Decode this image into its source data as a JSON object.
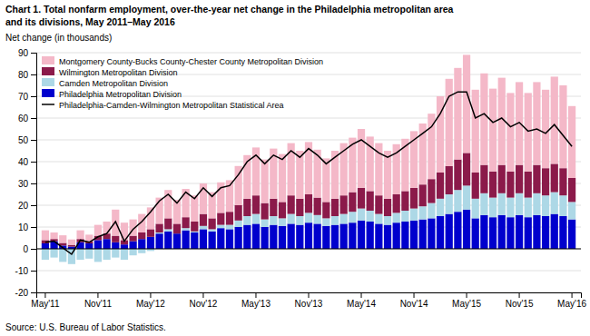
{
  "chart_data": {
    "type": "bar",
    "stacked": true,
    "title": "Chart 1. Total nonfarm employment, over-the-year net change in the Philadelphia metropolitan area",
    "subtitle": "and its divisions, May 2011–May 2016",
    "ylabel": "Net change (in thousands)",
    "source": "Source: U.S. Bureau of Labor Statistics.",
    "ylim": [
      -20,
      90
    ],
    "yticks": [
      -20,
      -10,
      0,
      10,
      20,
      30,
      40,
      50,
      60,
      70,
      80,
      90
    ],
    "grid": true,
    "legend": "upper left",
    "categories": [
      "May'11",
      null,
      null,
      null,
      null,
      null,
      "Nov'11",
      null,
      null,
      null,
      null,
      null,
      "May'12",
      null,
      null,
      null,
      null,
      null,
      "Nov'12",
      null,
      null,
      null,
      null,
      null,
      "May'13",
      null,
      null,
      null,
      null,
      null,
      "Nov'13",
      null,
      null,
      null,
      null,
      null,
      "May'14",
      null,
      null,
      null,
      null,
      null,
      "Nov'14",
      null,
      null,
      null,
      null,
      null,
      "May'15",
      null,
      null,
      null,
      null,
      null,
      "Nov'15",
      null,
      null,
      null,
      null,
      null,
      "May'16"
    ],
    "series": [
      {
        "name": "Montgomery County-Bucks County-Chester County Metropolitan Division",
        "color": "#f4b8c8",
        "type": "bar",
        "values": [
          4.5,
          3.0,
          3.5,
          2.5,
          4.0,
          3.0,
          5.0,
          5.5,
          12.0,
          8.0,
          7.5,
          8.5,
          10.0,
          12.0,
          13.0,
          11.0,
          13.0,
          12.0,
          14.0,
          12.0,
          14.0,
          14.5,
          18.0,
          20.0,
          22.0,
          20.0,
          23.0,
          22.0,
          24.0,
          22.0,
          24.0,
          22.0,
          20.0,
          22.0,
          24.0,
          25.0,
          27.0,
          25.0,
          24.0,
          22.0,
          23.0,
          24.0,
          26.0,
          28.0,
          30.0,
          35.0,
          40.0,
          42.0,
          45.0,
          38.0,
          42.0,
          38.0,
          40.0,
          36.0,
          38.0,
          36.0,
          38.0,
          36.0,
          40.0,
          38.0,
          33.0
        ]
      },
      {
        "name": "Wilmington Metropolitan Division",
        "color": "#8b1a4a",
        "type": "bar",
        "values": [
          1.5,
          1.0,
          1.2,
          0.8,
          1.5,
          1.0,
          2.0,
          2.5,
          3.0,
          2.0,
          2.5,
          3.0,
          3.5,
          4.0,
          5.0,
          4.5,
          5.0,
          4.5,
          5.5,
          5.0,
          5.5,
          6.0,
          7.0,
          8.0,
          8.5,
          7.5,
          8.0,
          7.5,
          8.5,
          8.0,
          8.5,
          8.0,
          7.5,
          8.0,
          8.5,
          9.0,
          9.5,
          9.0,
          8.5,
          8.0,
          8.5,
          9.0,
          9.5,
          10.0,
          11.0,
          12.0,
          13.0,
          14.0,
          15.0,
          12.0,
          13.0,
          12.0,
          13.0,
          12.0,
          13.0,
          12.0,
          13.0,
          12.5,
          13.0,
          12.5,
          11.0
        ]
      },
      {
        "name": "Camden Metropolitan Division",
        "color": "#add8e6",
        "type": "bar",
        "values": [
          -5.0,
          -4.0,
          -6.0,
          -7.0,
          -5.0,
          -4.5,
          -6.0,
          -5.0,
          -4.0,
          -5.0,
          -3.0,
          -2.0,
          -1.0,
          0.5,
          1.0,
          0.0,
          1.0,
          0.5,
          1.5,
          1.0,
          1.5,
          2.0,
          3.0,
          4.0,
          4.5,
          3.5,
          4.0,
          3.5,
          4.5,
          4.0,
          4.5,
          4.0,
          3.5,
          4.0,
          4.5,
          5.0,
          5.5,
          5.0,
          4.5,
          4.0,
          4.5,
          5.0,
          5.5,
          6.0,
          7.0,
          8.0,
          9.0,
          10.0,
          11.0,
          9.0,
          10.0,
          9.0,
          10.0,
          9.0,
          10.0,
          9.0,
          10.0,
          9.5,
          10.0,
          9.5,
          8.0
        ]
      },
      {
        "name": "Philadelphia Metropolitan Division",
        "color": "#0000cd",
        "type": "bar",
        "values": [
          2.5,
          3.5,
          1.5,
          1.0,
          3.0,
          2.5,
          4.0,
          4.5,
          3.0,
          2.0,
          3.5,
          4.5,
          5.5,
          7.0,
          8.0,
          7.0,
          8.5,
          7.5,
          9.0,
          8.0,
          9.5,
          9.0,
          10.0,
          11.0,
          11.5,
          10.0,
          11.0,
          10.5,
          11.5,
          11.0,
          12.0,
          11.5,
          10.5,
          11.0,
          11.5,
          12.0,
          13.0,
          12.5,
          11.5,
          11.0,
          12.0,
          12.5,
          13.0,
          13.5,
          14.0,
          15.0,
          16.0,
          17.0,
          18.0,
          14.0,
          15.5,
          14.5,
          15.5,
          14.5,
          15.5,
          14.5,
          15.5,
          15.0,
          16.0,
          15.0,
          13.5
        ]
      },
      {
        "name": "Philadelphia-Camden-Wilmington Metropolitan Statistical Area",
        "color": "#000000",
        "type": "line",
        "values": [
          3.0,
          3.5,
          0.5,
          -2.5,
          4.0,
          3.0,
          5.5,
          7.0,
          12.5,
          3.5,
          9.0,
          12.5,
          17.0,
          22.0,
          25.0,
          21.0,
          26.0,
          23.0,
          28.0,
          24.0,
          28.0,
          29.0,
          34.0,
          40.0,
          43.0,
          39.0,
          43.0,
          41.0,
          45.0,
          42.0,
          46.0,
          43.0,
          39.0,
          42.0,
          45.0,
          48.0,
          50.0,
          47.0,
          44.0,
          42.0,
          44.0,
          47.0,
          50.0,
          53.0,
          56.0,
          62.0,
          70.0,
          72.0,
          72.0,
          60.0,
          62.0,
          58.0,
          60.0,
          56.0,
          58.0,
          54.0,
          55.0,
          53.0,
          57.0,
          52.0,
          47.0
        ]
      }
    ]
  }
}
